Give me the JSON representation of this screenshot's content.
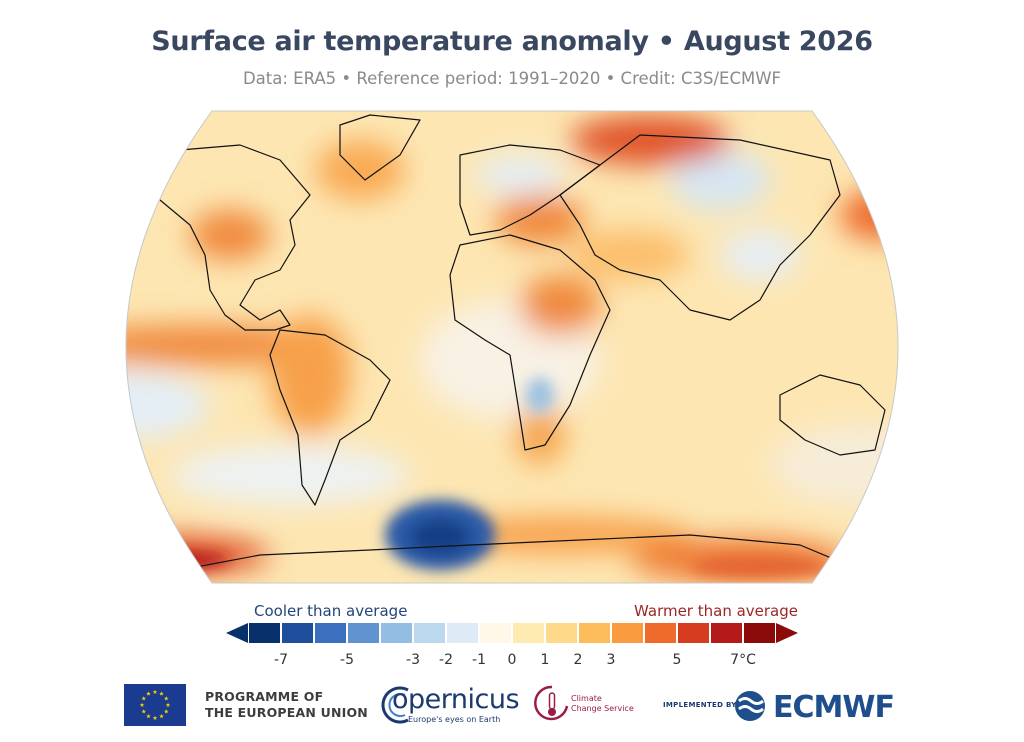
{
  "header": {
    "title": "Surface air temperature anomaly • August 2026",
    "subtitle": "Data: ERA5 • Reference period: 1991–2020 • Credit: C3S/ECMWF"
  },
  "colorbar": {
    "cool_label": "Cooler than average",
    "warm_label": "Warmer than average",
    "tick_labels": [
      "-7",
      "-5",
      "-3",
      "-2",
      "-1",
      "0",
      "1",
      "2",
      "3",
      "5",
      "7°C"
    ],
    "colors": [
      "#08306b",
      "#1f4e9c",
      "#3c6fbd",
      "#6193d0",
      "#93bde2",
      "#bcd8ee",
      "#deebf7",
      "#fff7e8",
      "#feebb2",
      "#fed98a",
      "#fdbd5c",
      "#f99b3e",
      "#ee6b2c",
      "#d63c20",
      "#b41a1a",
      "#8b0a0a"
    ]
  },
  "logos": {
    "eu_line1": "PROGRAMME OF",
    "eu_line2": "THE EUROPEAN UNION",
    "copernicus": "opernicus",
    "copernicus_tagline": "Europe's eyes on Earth",
    "c3s_line1": "Climate",
    "c3s_line2": "Change Service",
    "implemented_by": "IMPLEMENTED BY",
    "ecmwf": "ECMWF"
  }
}
